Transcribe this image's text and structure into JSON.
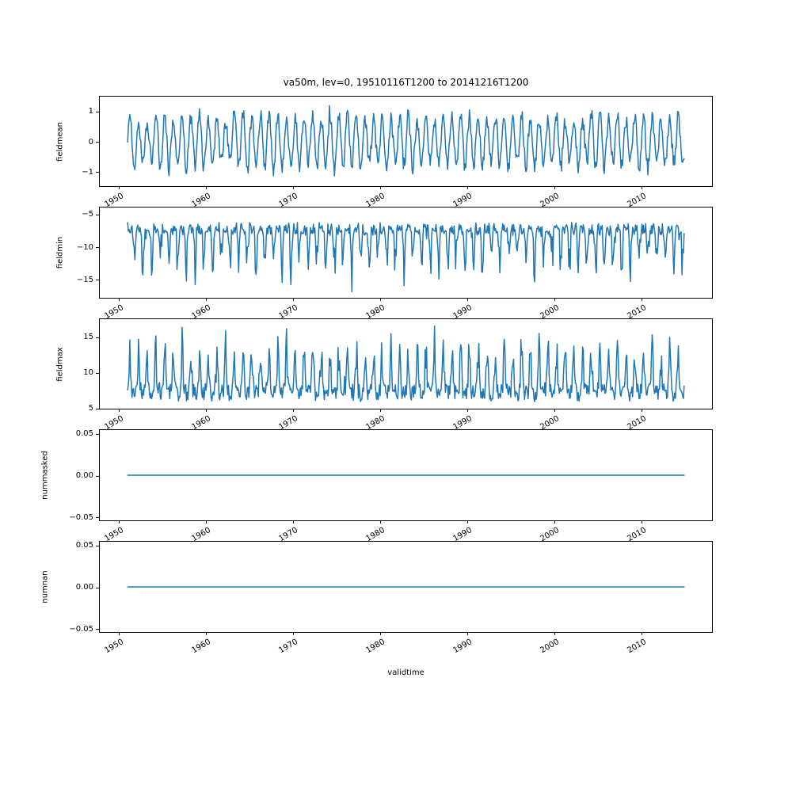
{
  "figure": {
    "title": "va50m, lev=0, 19510116T1200 to 20141216T1200",
    "xlabel": "validtime",
    "background_color": "#ffffff",
    "line_color": "#1f77b4",
    "axis_color": "#000000"
  },
  "chart_data": {
    "type": "line",
    "title": "va50m, lev=0, 19510116T1200 to 20141216T1200",
    "xlabel": "validtime",
    "legend": "none",
    "grid": false,
    "x": {
      "start": 1951.042,
      "end": 2014.958,
      "points": 768,
      "sampling": "monthly",
      "xlim": [
        1947.75,
        2018.25
      ],
      "ticks": [
        1950,
        1960,
        1970,
        1980,
        1990,
        2000,
        2010
      ],
      "tick_labels": [
        "1950",
        "1960",
        "1970",
        "1980",
        "1990",
        "2000",
        "2010"
      ],
      "tick_label_rotation_deg": 30
    },
    "subplots": [
      {
        "name": "fieldmean",
        "ylabel": "fieldmean",
        "ylim": [
          -1.5,
          1.5
        ],
        "yticks": [
          -1,
          0,
          1
        ],
        "ytick_labels": [
          "−1",
          "0",
          "1"
        ],
        "summary": "annual sinusoidal cycle, peaks ~+0.6 to +1.35, troughs ~-0.6 to -1.3",
        "synthesis": {
          "kind": "seasonal",
          "seed": 42,
          "amp_base": 0.62,
          "amp_var": 0.33,
          "noise": 0.5,
          "rare_boost_p": 0.015,
          "rare_boost": 1.18
        }
      },
      {
        "name": "fieldmin",
        "ylabel": "fieldmin",
        "ylim": [
          -17.9,
          -3.9
        ],
        "yticks": [
          -15,
          -10,
          -5
        ],
        "ytick_labels": [
          "−15",
          "−10",
          "−5"
        ],
        "summary": "baseline ~-6 to -9 with annual downward spikes to -13 .. -17.5",
        "synthesis": {
          "kind": "spike_down",
          "seed": 7,
          "base": -6.3,
          "noise": 1.7,
          "spike_min": 2.3,
          "spike_var": 7.0,
          "deep_p": 0.02,
          "deep_extra": 1.4
        }
      },
      {
        "name": "fieldmax",
        "ylabel": "fieldmax",
        "ylim": [
          4.8,
          17.6
        ],
        "yticks": [
          5,
          10,
          15
        ],
        "ytick_labels": [
          "5",
          "10",
          "15"
        ],
        "summary": "baseline ~6 to 9 with annual upward spikes to 13 .. 17",
        "synthesis": {
          "kind": "spike_up",
          "seed": 13,
          "base": 6.2,
          "noise": 2.4,
          "spike_min": 2.2,
          "spike_var": 5.8,
          "deep_p": 0.02,
          "deep_extra": 1.2
        }
      },
      {
        "name": "nummasked",
        "ylabel": "nummasked",
        "ylim": [
          -0.055,
          0.055
        ],
        "yticks": [
          -0.05,
          0,
          0.05
        ],
        "ytick_labels": [
          "−0.05",
          "0.00",
          "0.05"
        ],
        "summary": "constant 0 for entire record",
        "synthesis": {
          "kind": "constant",
          "seed": 1,
          "value": 0
        }
      },
      {
        "name": "numnan",
        "ylabel": "numnan",
        "ylim": [
          -0.055,
          0.055
        ],
        "yticks": [
          -0.05,
          0,
          0.05
        ],
        "ytick_labels": [
          "−0.05",
          "0.00",
          "0.05"
        ],
        "summary": "constant 0 for entire record",
        "synthesis": {
          "kind": "constant",
          "seed": 2,
          "value": 0
        }
      }
    ]
  }
}
